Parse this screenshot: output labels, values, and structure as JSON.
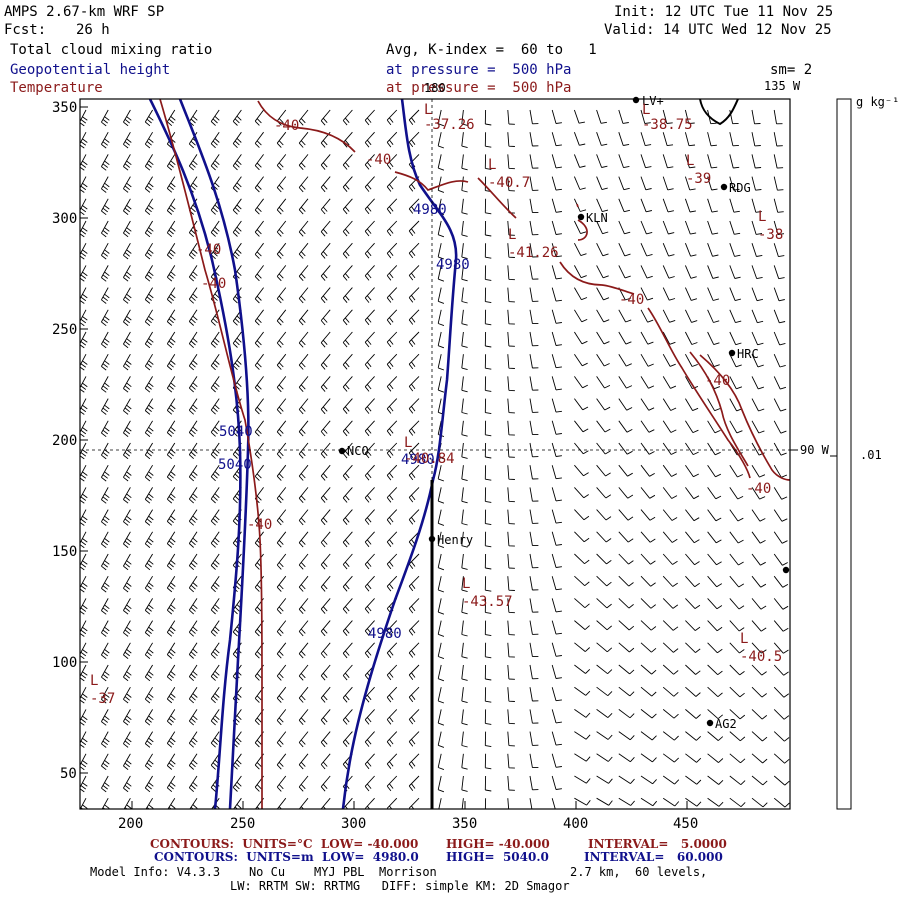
{
  "header": {
    "model": "AMPS 2.67-km WRF SP",
    "fcst_label": "Fcst:",
    "fcst_value": "26 h",
    "init": "Init: 12 UTC Tue 11 Nov 25",
    "valid": "Valid: 14 UTC Wed 12 Nov 25",
    "field1": "Total cloud mixing ratio",
    "field2": "Geopotential height",
    "field3": "Temperature",
    "avg": "Avg, K-index =  60 to   1",
    "press1": "at pressure =  500 hPa",
    "press2": "at pressure =  500 hPa",
    "sm": "sm= 2"
  },
  "map": {
    "x_ticks": [
      "200",
      "250",
      "300",
      "350",
      "400",
      "450"
    ],
    "y_ticks": [
      "350",
      "300",
      "250",
      "200",
      "150",
      "100",
      "50"
    ],
    "meridian_top": "180",
    "meridian_135": "135 W",
    "meridian_90": "90 W",
    "colorbar_unit": "g kg⁻¹",
    "colorbar_tick": ".01",
    "stations": [
      "LV+",
      "RDG",
      "KLN",
      "HRC",
      "NCO",
      "Henry",
      "AG2"
    ],
    "height_labels": [
      "4980",
      "4980",
      "5040",
      "5040",
      "4980",
      "4980"
    ],
    "temp_labels": [
      "-40",
      "-40",
      "-40",
      "-40",
      "-40",
      "-40",
      "-40",
      "-40"
    ],
    "lows": [
      {
        "mark": "L",
        "value": "-37.26"
      },
      {
        "mark": "L",
        "value": "-38.75"
      },
      {
        "mark": "L",
        "value": "-40.7"
      },
      {
        "mark": "L",
        "value": "-39"
      },
      {
        "mark": "L",
        "value": "-38"
      },
      {
        "mark": "L",
        "value": "-41.26"
      },
      {
        "mark": "L",
        "value": "-40.84"
      },
      {
        "mark": "L",
        "value": "-43.57"
      },
      {
        "mark": "L",
        "value": "-40.5"
      },
      {
        "mark": "L",
        "value": "-37"
      }
    ]
  },
  "footer": {
    "red_contours": "CONTOURS:  UNITS=°C  LOW= -40.000",
    "red_high": "HIGH= -40.000",
    "red_interval": "INTERVAL=   5.0000",
    "blue_contours": "CONTOURS:  UNITS=m  LOW=  4980.0",
    "blue_high": "HIGH=  5040.0",
    "blue_interval": "INTERVAL=   60.000",
    "info1": "Model Info: V4.3.3    No Cu    MYJ PBL  Morrison",
    "info1b": "2.7 km,  60 levels,",
    "info2": "LW: RRTM SW: RRTMG   DIFF: simple KM: 2D Smagor"
  }
}
